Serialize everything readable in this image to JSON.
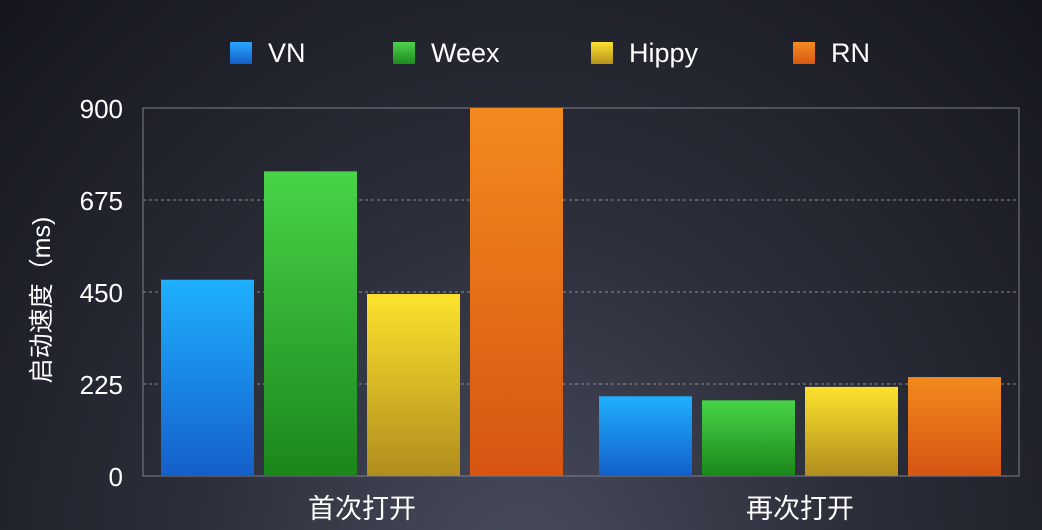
{
  "chart_data": {
    "type": "bar",
    "categories": [
      "首次打开",
      "再次打开"
    ],
    "series": [
      {
        "name": "VN",
        "values": [
          480,
          195
        ],
        "color": "#1a8ae8"
      },
      {
        "name": "Weex",
        "values": [
          745,
          185
        ],
        "color": "#2fae2f"
      },
      {
        "name": "Hippy",
        "values": [
          445,
          218
        ],
        "color": "#e0bb1f"
      },
      {
        "name": "RN",
        "values": [
          900,
          242
        ],
        "color": "#e8721a"
      }
    ],
    "yticks": [
      "0",
      "225",
      "450",
      "675",
      "900"
    ],
    "ylim": [
      0,
      900
    ],
    "ylabel": "启动速度（ms)",
    "xlabel": "",
    "title": "",
    "legend": "top",
    "grid": true
  }
}
